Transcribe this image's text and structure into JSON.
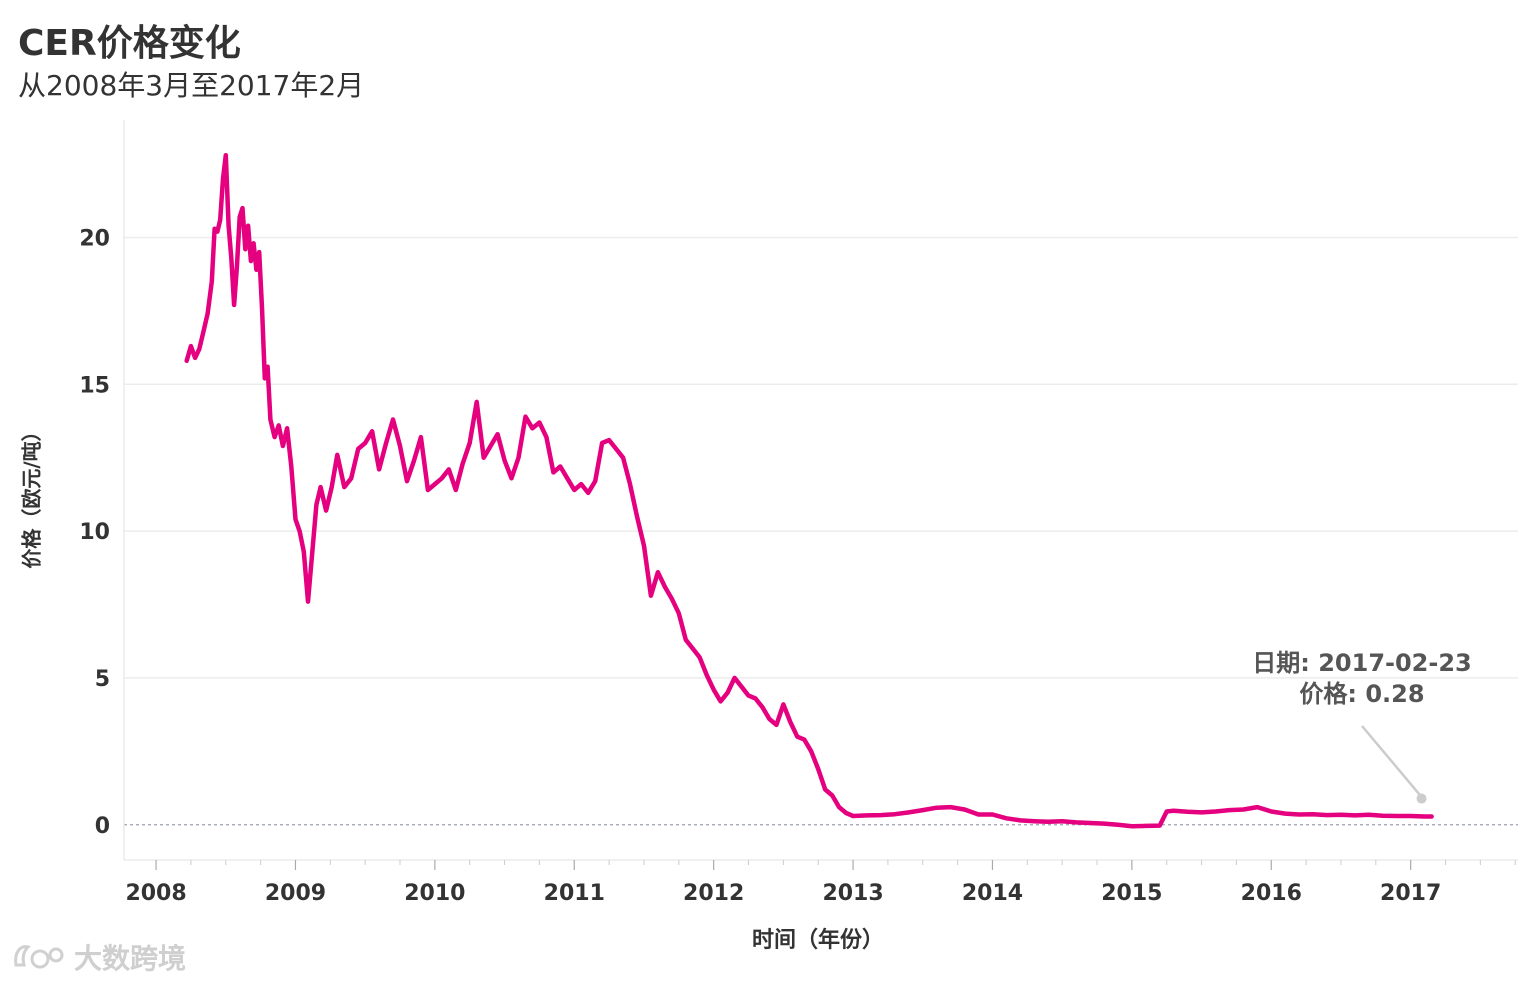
{
  "title": "CER价格变化",
  "subtitle": "从2008年3月至2017年2月",
  "watermark": {
    "text": "大数跨境",
    "icon": "logo-icon"
  },
  "colors": {
    "line": "#e5007f",
    "grid": "#ececec",
    "zero": "#9aa0b0",
    "text": "#333333",
    "annot": "#cccccc"
  },
  "chart_data": {
    "type": "line",
    "title": "CER价格变化",
    "subtitle": "从2008年3月至2017年2月",
    "xlabel": "时间（年份）",
    "ylabel": "价格（欧元/吨）",
    "xlim": [
      2007.77,
      2017.77
    ],
    "ylim": [
      -1.2,
      24.0
    ],
    "xticks": [
      "2008",
      "2009",
      "2010",
      "2011",
      "2012",
      "2013",
      "2014",
      "2015",
      "2016",
      "2017"
    ],
    "yticks": [
      "0",
      "5",
      "10",
      "15",
      "20"
    ],
    "grid": true,
    "legend": "none",
    "annotation": {
      "line1": "日期: 2017-02-23",
      "line2": "价格: 0.28",
      "x": 2017.15,
      "y": 0.28
    },
    "series": [
      {
        "x": [
          2008.22,
          2008.25,
          2008.28,
          2008.31,
          2008.34,
          2008.37,
          2008.4,
          2008.42,
          2008.44,
          2008.46,
          2008.48,
          2008.5,
          2008.52,
          2008.54,
          2008.56,
          2008.58,
          2008.6,
          2008.62,
          2008.64,
          2008.66,
          2008.68,
          2008.7,
          2008.72,
          2008.74,
          2008.76,
          2008.78,
          2008.8,
          2008.82,
          2008.85,
          2008.88,
          2008.91,
          2008.94,
          2008.97,
          2009.0,
          2009.03,
          2009.06,
          2009.09,
          2009.11,
          2009.13,
          2009.15,
          2009.18,
          2009.22,
          2009.26,
          2009.3,
          2009.35,
          2009.4,
          2009.45,
          2009.5,
          2009.55,
          2009.6,
          2009.65,
          2009.7,
          2009.75,
          2009.8,
          2009.85,
          2009.9,
          2009.95,
          2010.0,
          2010.05,
          2010.1,
          2010.15,
          2010.2,
          2010.25,
          2010.3,
          2010.35,
          2010.4,
          2010.45,
          2010.5,
          2010.55,
          2010.6,
          2010.65,
          2010.7,
          2010.75,
          2010.8,
          2010.85,
          2010.9,
          2010.95,
          2011.0,
          2011.05,
          2011.1,
          2011.15,
          2011.2,
          2011.25,
          2011.3,
          2011.35,
          2011.4,
          2011.45,
          2011.5,
          2011.55,
          2011.6,
          2011.65,
          2011.7,
          2011.75,
          2011.8,
          2011.85,
          2011.9,
          2011.95,
          2012.0,
          2012.05,
          2012.1,
          2012.15,
          2012.2,
          2012.25,
          2012.3,
          2012.35,
          2012.4,
          2012.45,
          2012.5,
          2012.55,
          2012.6,
          2012.65,
          2012.7,
          2012.75,
          2012.8,
          2012.85,
          2012.9,
          2012.95,
          2013.0,
          2013.1,
          2013.2,
          2013.3,
          2013.4,
          2013.5,
          2013.6,
          2013.7,
          2013.8,
          2013.9,
          2014.0,
          2014.1,
          2014.2,
          2014.3,
          2014.4,
          2014.5,
          2014.6,
          2014.7,
          2014.8,
          2014.9,
          2015.0,
          2015.1,
          2015.2,
          2015.25,
          2015.3,
          2015.4,
          2015.5,
          2015.6,
          2015.7,
          2015.8,
          2015.9,
          2016.0,
          2016.1,
          2016.2,
          2016.3,
          2016.4,
          2016.5,
          2016.6,
          2016.7,
          2016.8,
          2016.9,
          2017.0,
          2017.1,
          2017.15
        ],
        "y": [
          15.8,
          16.3,
          15.9,
          16.2,
          16.8,
          17.4,
          18.5,
          20.3,
          20.2,
          20.6,
          22.0,
          22.8,
          20.4,
          19.3,
          17.7,
          19.0,
          20.7,
          21.0,
          19.6,
          20.4,
          19.2,
          19.8,
          18.9,
          19.5,
          17.6,
          15.2,
          15.6,
          13.8,
          13.2,
          13.6,
          12.9,
          13.5,
          12.2,
          10.4,
          10.0,
          9.3,
          7.6,
          8.7,
          9.8,
          10.9,
          11.5,
          10.7,
          11.5,
          12.6,
          11.5,
          11.8,
          12.8,
          13.0,
          13.4,
          12.1,
          13.0,
          13.8,
          12.9,
          11.7,
          12.4,
          13.2,
          11.4,
          11.6,
          11.8,
          12.1,
          11.4,
          12.3,
          13.0,
          14.4,
          12.5,
          12.9,
          13.3,
          12.4,
          11.8,
          12.5,
          13.9,
          13.5,
          13.7,
          13.2,
          12.0,
          12.2,
          11.8,
          11.4,
          11.6,
          11.3,
          11.7,
          13.0,
          13.1,
          12.8,
          12.5,
          11.6,
          10.5,
          9.5,
          7.8,
          8.6,
          8.1,
          7.7,
          7.2,
          6.3,
          6.0,
          5.7,
          5.1,
          4.6,
          4.2,
          4.5,
          5.0,
          4.7,
          4.4,
          4.3,
          4.0,
          3.6,
          3.4,
          4.1,
          3.5,
          3.0,
          2.9,
          2.5,
          1.9,
          1.2,
          1.0,
          0.6,
          0.4,
          0.3,
          0.32,
          0.33,
          0.36,
          0.42,
          0.5,
          0.58,
          0.6,
          0.52,
          0.35,
          0.35,
          0.22,
          0.15,
          0.12,
          0.1,
          0.12,
          0.08,
          0.06,
          0.04,
          0.0,
          -0.05,
          -0.04,
          -0.03,
          0.45,
          0.48,
          0.44,
          0.42,
          0.45,
          0.5,
          0.52,
          0.6,
          0.45,
          0.38,
          0.35,
          0.36,
          0.33,
          0.34,
          0.32,
          0.34,
          0.31,
          0.3,
          0.3,
          0.28,
          0.28
        ]
      }
    ]
  },
  "annotation": {
    "line1": "日期: 2017-02-23",
    "line2": "价格: 0.28"
  }
}
